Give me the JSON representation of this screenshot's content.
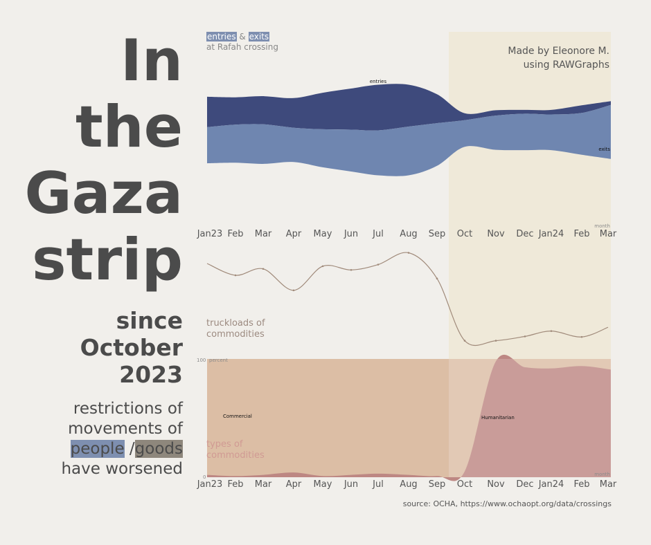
{
  "headline": {
    "lines": [
      "In",
      "the",
      "Gaza",
      "strip"
    ]
  },
  "since": {
    "lines": [
      "since",
      "October",
      "2023"
    ]
  },
  "subtitle": {
    "line1": "restrictions of",
    "line2": "movements of",
    "people": "people",
    "slash": " /",
    "goods": "goods",
    "line4": "have worsened"
  },
  "credit": {
    "line1": "Made by Eleonore M.",
    "line2": "using RAWGraphs"
  },
  "source": "source: OCHA, https://www.ochaopt.org/data/crossings",
  "legend_crossing": {
    "entries": "entries",
    "amp": " & ",
    "exits": "exits",
    "place": "at Rafah crossing"
  },
  "legend_trucks": {
    "line1": "truckloads of",
    "line2": "commodities"
  },
  "legend_types": {
    "line1": "types of",
    "line2": "commodities"
  },
  "colors": {
    "entries": "#3e4a7c",
    "exits": "#6f86b0",
    "truck_line": "#a08a7a",
    "commercial": "#dcbea5",
    "humanitarian": "#bd8783",
    "highlight": "#efe9d9"
  },
  "chart_data": [
    {
      "type": "area",
      "subtype": "streamgraph",
      "title": "entries & exits at Rafah crossing",
      "x": [
        "Jan23",
        "Feb",
        "Mar",
        "Apr",
        "May",
        "Jun",
        "Jul",
        "Aug",
        "Sep",
        "Oct",
        "Nov",
        "Dec",
        "Jan24",
        "Feb",
        "Mar"
      ],
      "xlabel": "month",
      "series": [
        {
          "name": "entries",
          "values": [
            80,
            72,
            74,
            78,
            96,
            108,
            120,
            110,
            76,
            18,
            14,
            10,
            12,
            20,
            10
          ]
        },
        {
          "name": "exits",
          "values": [
            95,
            100,
            104,
            90,
            100,
            110,
            118,
            128,
            112,
            70,
            90,
            96,
            94,
            110,
            142
          ]
        }
      ]
    },
    {
      "type": "line",
      "title": "truckloads of commodities",
      "x": [
        "Jan23",
        "Feb",
        "Mar",
        "Apr",
        "May",
        "Jun",
        "Jul",
        "Aug",
        "Sep",
        "Oct",
        "Nov",
        "Dec",
        "Jan24",
        "Feb",
        "Mar"
      ],
      "values": [
        2000,
        1780,
        1900,
        1500,
        1950,
        1880,
        1980,
        2200,
        1720,
        560,
        560,
        640,
        740,
        630,
        810
      ]
    },
    {
      "type": "area",
      "subtype": "stacked-percent",
      "title": "types of commodities",
      "ylabel": "percent",
      "ylim": [
        0,
        100
      ],
      "xlabel": "month",
      "x": [
        "Jan23",
        "Feb",
        "Mar",
        "Apr",
        "May",
        "Jun",
        "Jul",
        "Aug",
        "Sep",
        "Oct",
        "Nov",
        "Dec",
        "Jan24",
        "Feb",
        "Mar"
      ],
      "series": [
        {
          "name": "Commercial",
          "values": [
            98,
            99,
            98,
            96,
            99,
            98,
            97,
            98,
            99,
            95,
            2,
            7,
            8,
            6,
            9
          ]
        },
        {
          "name": "Humanitarian",
          "values": [
            2,
            1,
            2,
            4,
            1,
            2,
            3,
            2,
            1,
            5,
            98,
            93,
            92,
            94,
            91
          ]
        }
      ],
      "y_ticks": [
        "0",
        "100"
      ]
    }
  ]
}
